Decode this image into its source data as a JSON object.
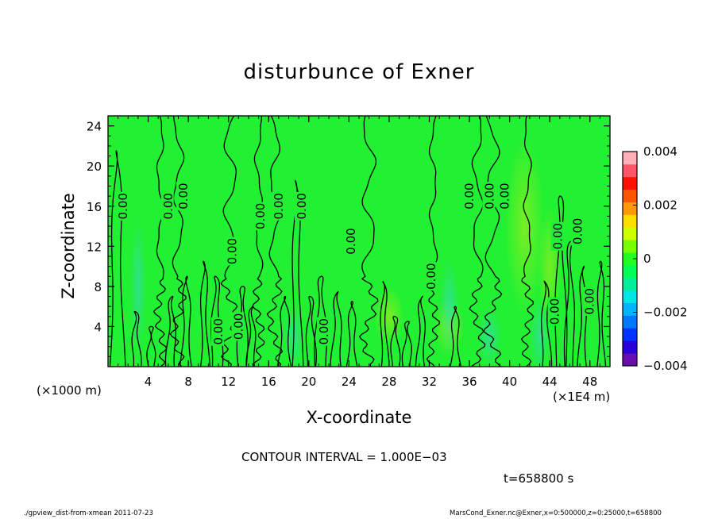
{
  "chart_data": {
    "type": "heatmap",
    "title": "disturbunce of Exner",
    "xlabel": "X-coordinate",
    "ylabel": "Z-coordinate",
    "x_unit_label": "(×1E4 m)",
    "y_unit_label": "(×1000 m)",
    "xlim": [
      0,
      50
    ],
    "ylim": [
      0,
      25
    ],
    "x_ticks": [
      "4",
      "8",
      "12",
      "16",
      "20",
      "24",
      "28",
      "32",
      "36",
      "40",
      "44",
      "48"
    ],
    "x_tick_values": [
      4,
      8,
      12,
      16,
      20,
      24,
      28,
      32,
      36,
      40,
      44,
      48
    ],
    "y_ticks": [
      "4",
      "8",
      "12",
      "16",
      "20",
      "24"
    ],
    "y_tick_values": [
      4,
      8,
      12,
      16,
      20,
      24
    ],
    "colorbar": {
      "range": [
        -0.004,
        0.004
      ],
      "tick_labels": [
        "0.004",
        "0.002",
        "0",
        "−0.002",
        "−0.004"
      ],
      "tick_values": [
        0.004,
        0.002,
        0,
        -0.002,
        -0.004
      ],
      "colors": [
        "#6a0dad",
        "#2a00d8",
        "#0033ff",
        "#0077ff",
        "#00b4ff",
        "#00e5e5",
        "#00ee99",
        "#00ff55",
        "#22ff22",
        "#77ff00",
        "#ccff00",
        "#ffdd00",
        "#ff9900",
        "#ff5500",
        "#ff1100",
        "#ff5566",
        "#ffb0b8"
      ]
    },
    "contour_labels": [
      {
        "text": "0.00",
        "x": 1.5,
        "z": 16
      },
      {
        "text": "0.00",
        "x": 6.0,
        "z": 16
      },
      {
        "text": "0.00",
        "x": 7.5,
        "z": 17
      },
      {
        "text": "0.00",
        "x": 11.0,
        "z": 3.5
      },
      {
        "text": "0.00",
        "x": 12.4,
        "z": 11.5
      },
      {
        "text": "0.00",
        "x": 13.0,
        "z": 4
      },
      {
        "text": "0.00",
        "x": 15.2,
        "z": 15
      },
      {
        "text": "0.00",
        "x": 17.0,
        "z": 16
      },
      {
        "text": "0.00",
        "x": 19.3,
        "z": 16
      },
      {
        "text": "0.00",
        "x": 21.5,
        "z": 3.5
      },
      {
        "text": "0.00",
        "x": 24.2,
        "z": 12.5
      },
      {
        "text": "0.00",
        "x": 32.2,
        "z": 9
      },
      {
        "text": "0.00",
        "x": 36.0,
        "z": 17
      },
      {
        "text": "0.00",
        "x": 38.0,
        "z": 17
      },
      {
        "text": "0.00",
        "x": 39.5,
        "z": 17
      },
      {
        "text": "0.00",
        "x": 44.5,
        "z": 5.5
      },
      {
        "text": "0.00",
        "x": 44.8,
        "z": 13
      },
      {
        "text": "0.00",
        "x": 46.8,
        "z": 13.5
      },
      {
        "text": "0.00",
        "x": 48.0,
        "z": 6.5
      }
    ],
    "contour_level": 0.0
  },
  "text": {
    "title": "disturbunce of Exner",
    "xlabel": "X-coordinate",
    "ylabel": "Z-coordinate",
    "xunit_left": "(×1000 m)",
    "xunit_right": "(×1E4 m)",
    "contour_interval": "CONTOUR INTERVAL = 1.000E−03",
    "time": "t=658800 s",
    "footer_left": "./gpview_dist-from-xmean  2011-07-23",
    "footer_right": "MarsCond_Exner.nc@Exner,x=0:500000,z=0:25000,t=658800"
  }
}
